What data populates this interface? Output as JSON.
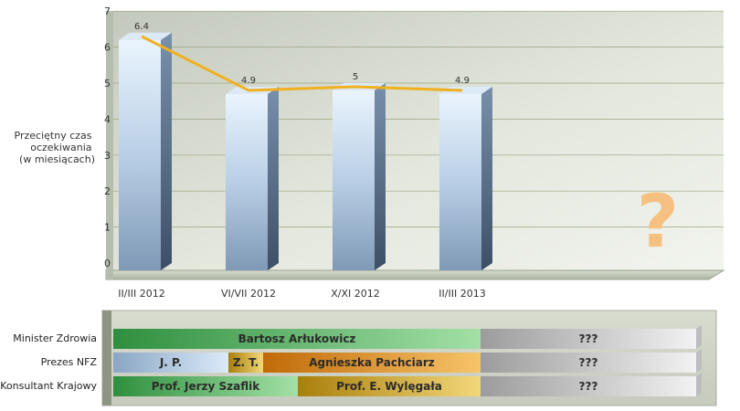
{
  "chart_data": {
    "type": "bar",
    "ylabel": "Przeciętny czas oczekiwania (w miesiącach)",
    "categories": [
      "II/III 2012",
      "VI/VII 2012",
      "X/XI 2012",
      "II/III 2013"
    ],
    "values": [
      6.2,
      4.7,
      4.8,
      4.7
    ],
    "line": {
      "name": "",
      "values": [
        6.4,
        4.9,
        5,
        4.9
      ],
      "labels": [
        "6.4",
        "4.9",
        "5",
        "4.9"
      ]
    },
    "ylim": [
      0,
      7
    ],
    "yticks": [
      0,
      1,
      2,
      3,
      4,
      5,
      6,
      7
    ],
    "grid": true,
    "placeholder_mark": "?"
  },
  "colors": {
    "bar": "#8fb0d0",
    "line": "#f0b020",
    "question": "#f5c080",
    "green": "#3c9a4a",
    "blue": "#7f9fc0",
    "orange": "#d28a1a",
    "olive": "#b08a10",
    "gray": "#a8a8a8"
  },
  "timeline": {
    "rows": [
      {
        "label": "Minister Zdrowia",
        "segments": [
          {
            "text": "Bartosz Arłukowicz",
            "color": "green"
          },
          {
            "text": "???",
            "color": "gray"
          }
        ]
      },
      {
        "label": "Prezes NFZ",
        "segments": [
          {
            "text": "J. P.",
            "color": "blue"
          },
          {
            "text": "Z. T.",
            "color": "olive"
          },
          {
            "text": "Agnieszka Pachciarz",
            "color": "orange"
          },
          {
            "text": "???",
            "color": "gray"
          }
        ]
      },
      {
        "label": "Konsultant Krajowy",
        "segments": [
          {
            "text": "Prof. Jerzy Szaflik",
            "color": "green"
          },
          {
            "text": "Prof. E. Wylęgała",
            "color": "olive"
          },
          {
            "text": "???",
            "color": "gray"
          }
        ]
      }
    ]
  }
}
